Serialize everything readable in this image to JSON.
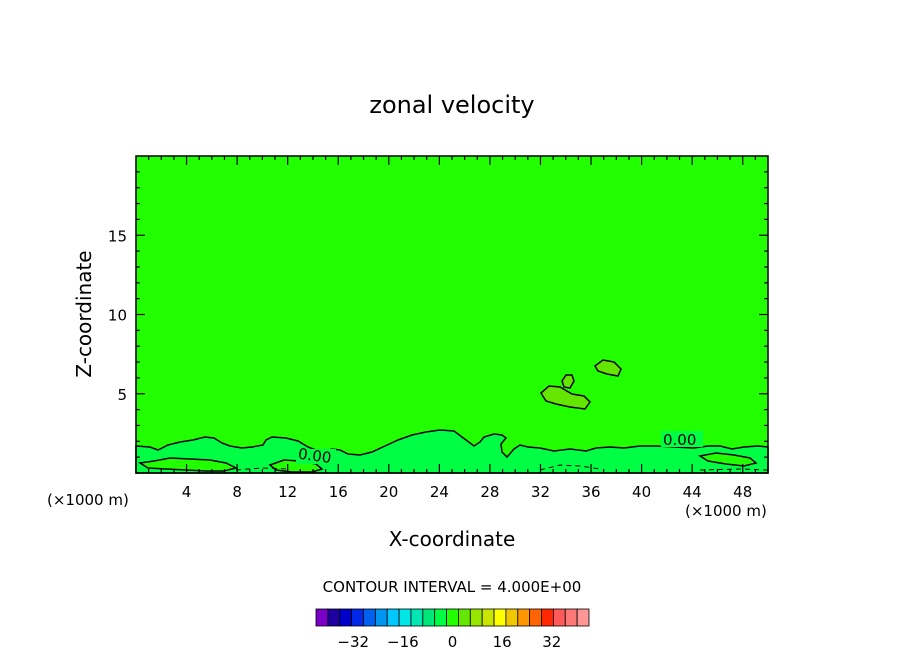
{
  "chart_data": {
    "type": "contour",
    "title": "zonal velocity",
    "xlabel": "X-coordinate",
    "ylabel": "Z-coordinate",
    "x_unit_label": "(×1000 m)",
    "xlim": [
      0,
      50
    ],
    "ylim": [
      0,
      20
    ],
    "xticks": [
      4,
      8,
      12,
      16,
      20,
      24,
      28,
      32,
      36,
      40,
      44,
      48
    ],
    "yticks": [
      5,
      10,
      15
    ],
    "contour_interval_text": "CONTOUR INTERVAL = 4.000E+00",
    "contour_labels": [
      "0.00",
      "0.00"
    ],
    "background_level_color": "#22ff00",
    "near_zero_color": "#00ff44",
    "line_color": "#000000",
    "colorbar": {
      "colors": [
        "#7a00c8",
        "#1e00a0",
        "#0000c8",
        "#0028e6",
        "#0060f0",
        "#0096f0",
        "#00c8ff",
        "#00e6e6",
        "#00e6b4",
        "#00e678",
        "#00ff44",
        "#22ff00",
        "#64e600",
        "#96e600",
        "#c8e600",
        "#ffff00",
        "#f0c800",
        "#ff9600",
        "#ff6400",
        "#ff2800",
        "#ff5a5a",
        "#ff7878",
        "#ff9696"
      ],
      "tick_labels": [
        "−32",
        "−16",
        "0",
        "16",
        "32"
      ],
      "tick_values": [
        -32,
        -16,
        0,
        16,
        32
      ],
      "min": -44,
      "max": 44
    }
  }
}
